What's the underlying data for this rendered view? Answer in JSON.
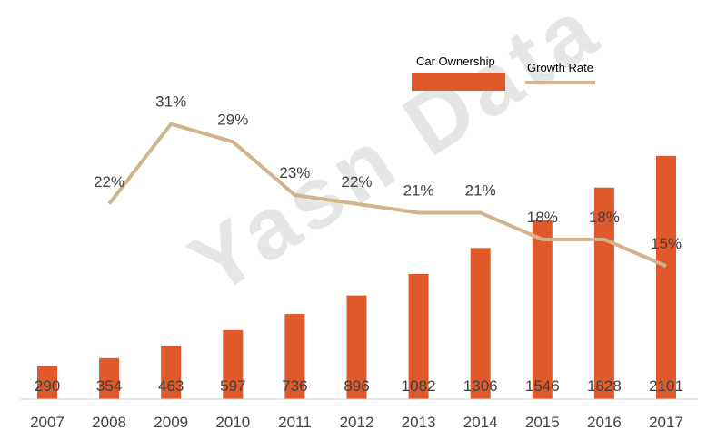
{
  "watermark": "Yasn Data",
  "colors": {
    "bar": "#E0592A",
    "line": "#D2B48C",
    "axis": "#d0d0d0"
  },
  "chart_data": {
    "type": "bar",
    "title": "",
    "xlabel": "",
    "ylabel": "",
    "grid": false,
    "legend_position": "top-right",
    "categories": [
      "2007",
      "2008",
      "2009",
      "2010",
      "2011",
      "2012",
      "2013",
      "2014",
      "2015",
      "2016",
      "2017"
    ],
    "series": [
      {
        "name": "Car Ownership",
        "type": "bar",
        "values": [
          290,
          354,
          463,
          597,
          736,
          896,
          1082,
          1306,
          1546,
          1828,
          2101
        ],
        "labels": [
          "290",
          "354",
          "463",
          "597",
          "736",
          "896",
          "1082",
          "1306",
          "1546",
          "1828",
          "2101"
        ]
      },
      {
        "name": "Growth Rate",
        "type": "line",
        "values": [
          null,
          22,
          31,
          29,
          23,
          22,
          21,
          21,
          18,
          18,
          15
        ],
        "labels": [
          "",
          "22%",
          "31%",
          "29%",
          "23%",
          "22%",
          "21%",
          "21%",
          "18%",
          "18%",
          "15%"
        ]
      }
    ],
    "ylim": [
      0,
      2100
    ],
    "y2lim": [
      0,
      37
    ]
  }
}
